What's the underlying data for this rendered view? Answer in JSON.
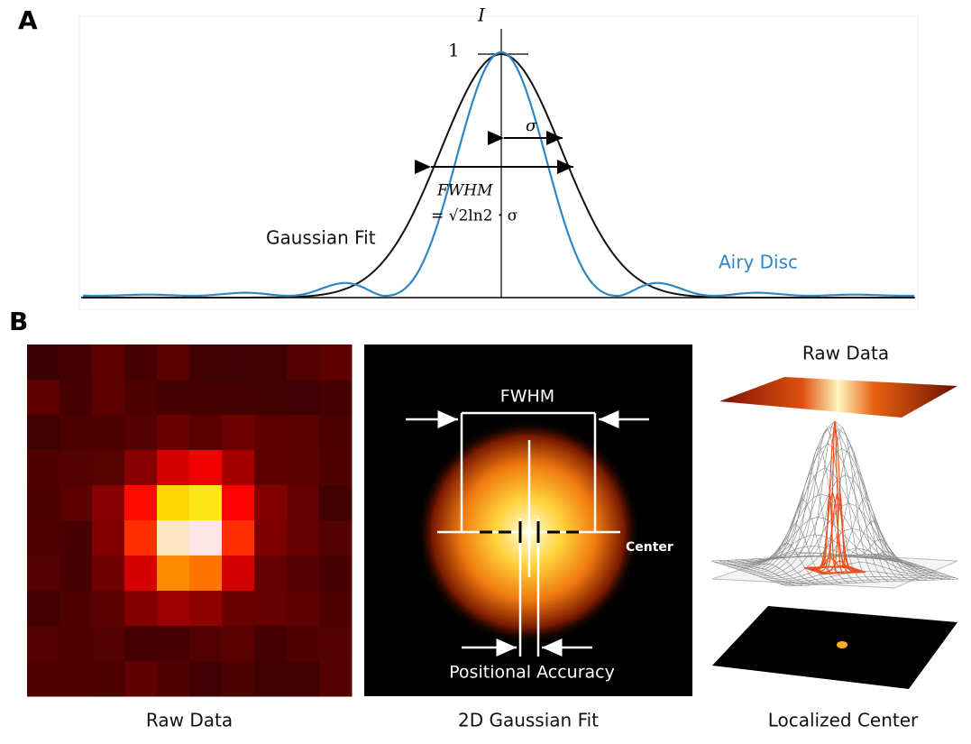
{
  "panel_a": {
    "label": "A",
    "axis_label": "I",
    "tick_one": "1",
    "sigma": "σ",
    "fwhm": "FWHM",
    "fwhm_formula": "= √2ln2 · σ",
    "gaussian_label": "Gaussian Fit",
    "airy_label": "Airy Disc"
  },
  "panel_b": {
    "label": "B",
    "raw": {
      "caption": "Raw Data"
    },
    "fit": {
      "fwhm": "FWHM",
      "center": "Center",
      "accuracy": "Positional Accuracy",
      "caption": "2D Gaussian Fit"
    },
    "threed": {
      "top": "Raw Data",
      "caption": "Localized Center"
    }
  }
}
